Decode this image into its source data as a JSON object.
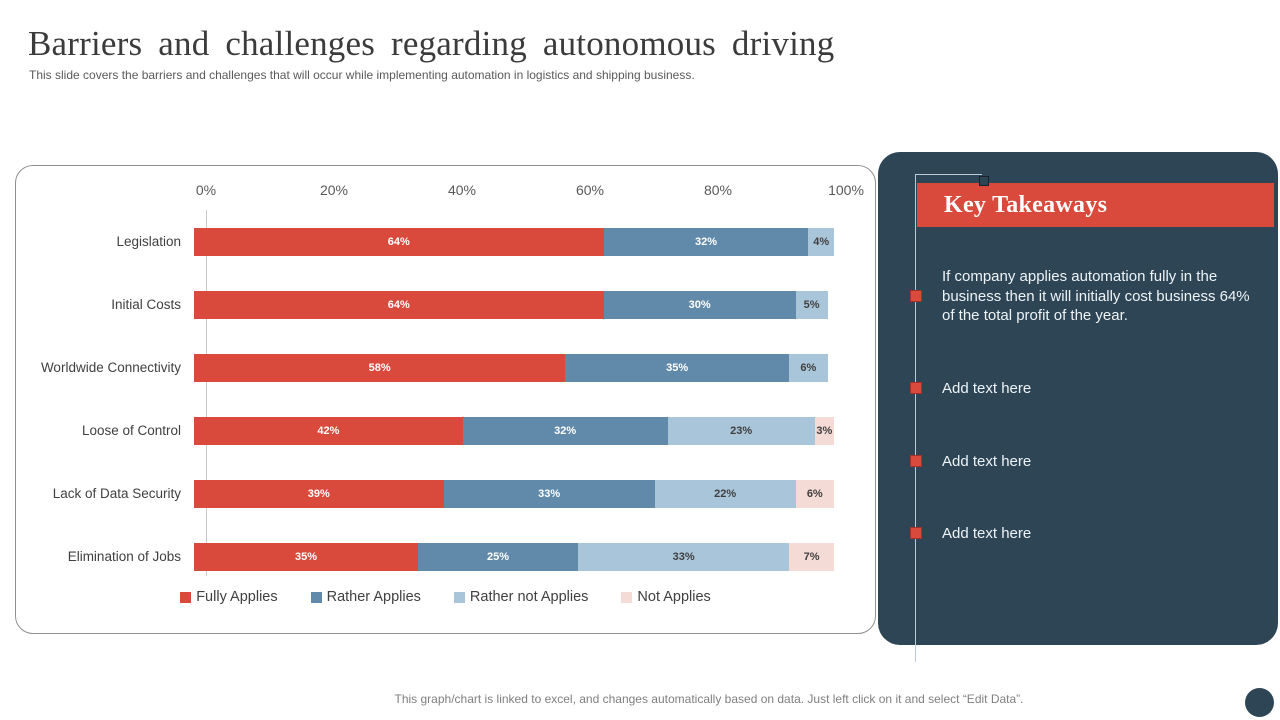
{
  "slide": {
    "title": "Barriers and challenges regarding autonomous driving",
    "subtitle": "This slide covers the barriers and challenges that will occur while implementing automation in logistics and shipping business.",
    "footer": "This graph/chart is linked to excel, and changes automatically based on data. Just left click on it and select “Edit Data”."
  },
  "chart_data": {
    "type": "bar",
    "orientation": "horizontal",
    "stacked": true,
    "categories": [
      "Legislation",
      "Initial Costs",
      "Worldwide Connectivity",
      "Loose of Control",
      "Lack of Data Security",
      "Elimination of Jobs"
    ],
    "series": [
      {
        "name": "Fully Applies",
        "color": "#d9493c",
        "label_color": "#ffffff",
        "values": [
          64,
          64,
          58,
          42,
          39,
          35
        ]
      },
      {
        "name": "Rather Applies",
        "color": "#6189a9",
        "label_color": "#ffffff",
        "values": [
          32,
          30,
          35,
          32,
          33,
          25
        ]
      },
      {
        "name": "Rather not Applies",
        "color": "#a9c5da",
        "label_color": "#3f3f3f",
        "values": [
          4,
          5,
          6,
          23,
          22,
          33
        ]
      },
      {
        "name": "Not Applies",
        "color": "#f5dbd6",
        "label_color": "#3f3f3f",
        "values": [
          0,
          0,
          0,
          3,
          6,
          7
        ]
      }
    ],
    "x_ticks": [
      "0%",
      "20%",
      "40%",
      "60%",
      "80%",
      "100%"
    ],
    "xlim": [
      0,
      100
    ],
    "value_suffix": "%",
    "legend_position": "bottom",
    "grid": false
  },
  "takeaways": {
    "title": "Key Takeaways",
    "items": [
      "If company applies automation fully in the business then it will initially cost business 64% of the total profit of the year.",
      "Add text here",
      "Add text here",
      "Add text here"
    ]
  },
  "colors": {
    "accent_red": "#d9493c",
    "panel_dark": "#2d4555",
    "connector_line": "#b9cbd8",
    "tick_text": "#595959",
    "label_text": "#404040",
    "footer_text": "#7f7f7f"
  }
}
